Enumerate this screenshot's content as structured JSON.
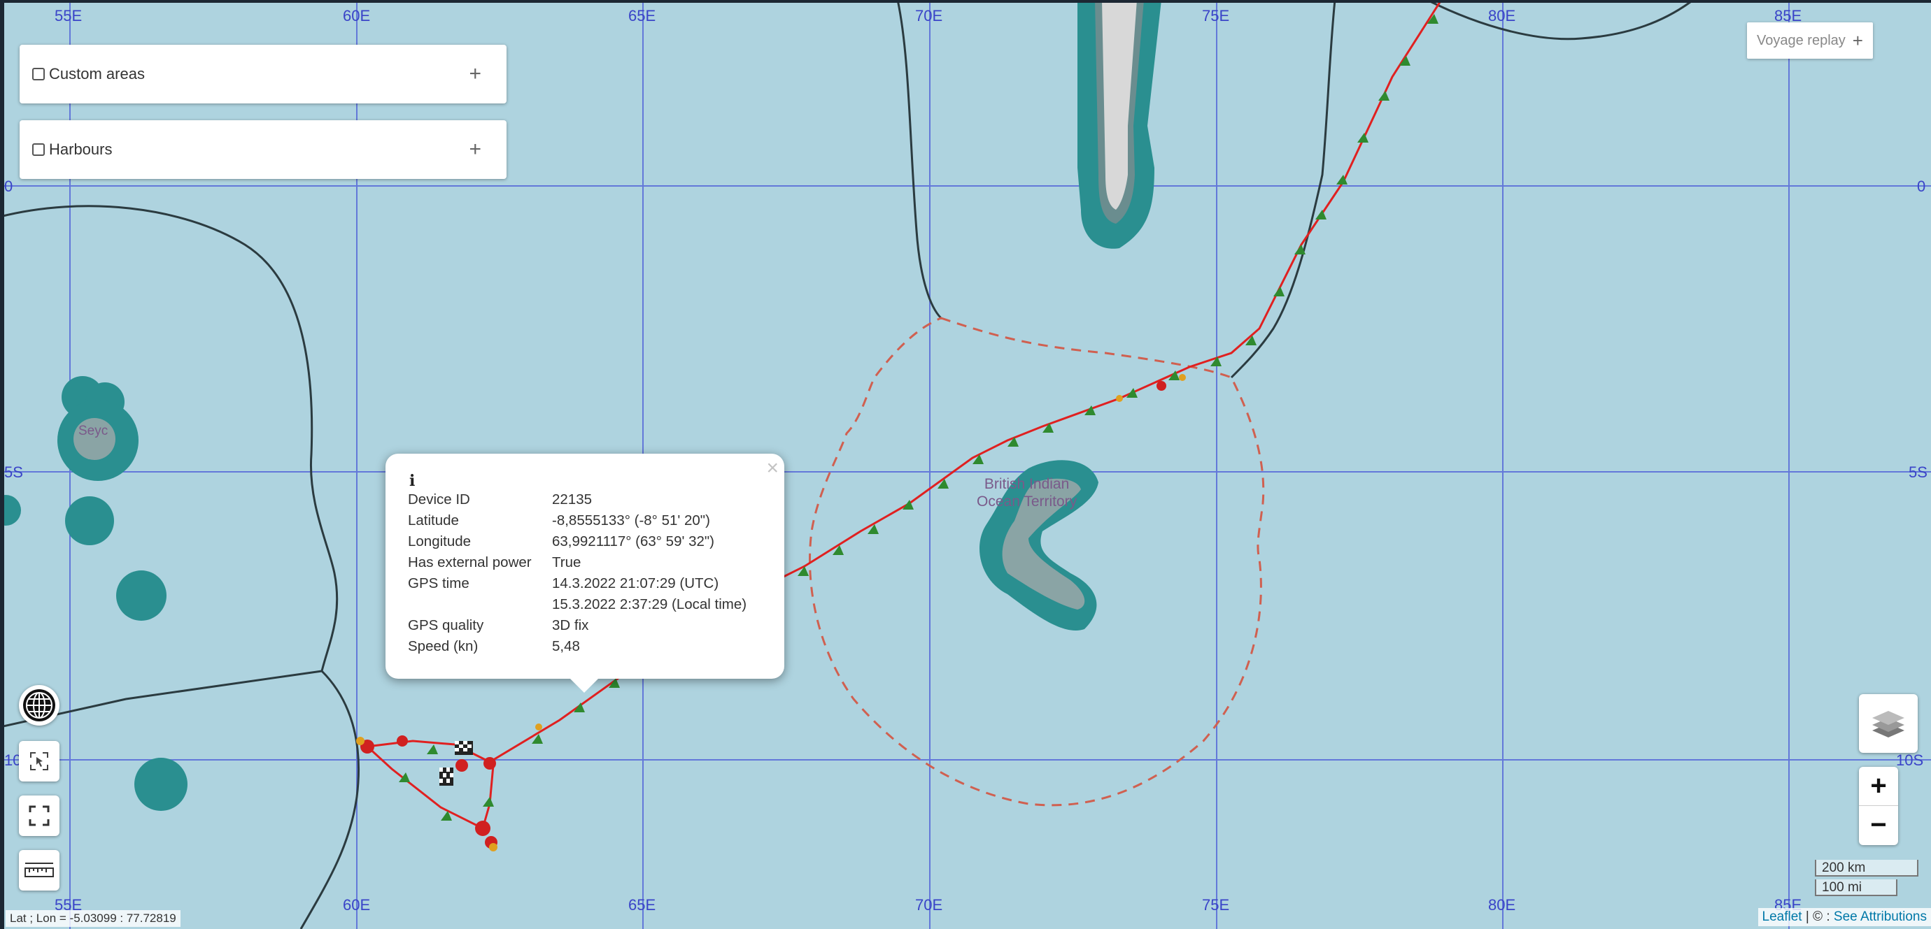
{
  "map": {
    "grid_labels_top": [
      "55E",
      "60E",
      "65E",
      "70E",
      "75E",
      "80E",
      "85E"
    ],
    "grid_labels_bottom": [
      "55E",
      "60E",
      "65E",
      "70E",
      "75E",
      "80E",
      "85E"
    ],
    "lat_labels_left": [
      "0",
      "5S",
      "10"
    ],
    "lat_labels_right": [
      "0",
      "5S",
      "10S"
    ],
    "territory_label_line1": "British Indian",
    "territory_label_line2": "Ocean Territory",
    "island_label": "Seyc",
    "colors": {
      "sea": "#aed3df",
      "grid": "#4a5ad8",
      "track": "#e02020",
      "arrow": "#2f8a2f",
      "reef": "#2a8f90",
      "eez": "#d06050"
    }
  },
  "panels": [
    {
      "label": "Custom areas",
      "checked": false,
      "expand": "+"
    },
    {
      "label": "Harbours",
      "checked": false,
      "expand": "+"
    }
  ],
  "voyage_replay": {
    "label": "Voyage replay",
    "icon": "+"
  },
  "popup": {
    "icon": "i",
    "close": "×",
    "rows": [
      {
        "key": "Device ID",
        "value": "22135"
      },
      {
        "key": "Latitude",
        "value": "-8,8555133° (-8° 51' 20\")"
      },
      {
        "key": "Longitude",
        "value": "63,9921117° (63° 59' 32\")"
      },
      {
        "key": "Has external power",
        "value": "True"
      },
      {
        "key": "GPS time",
        "value": "14.3.2022 21:07:29 (UTC)"
      },
      {
        "key": "",
        "value": "15.3.2022 2:37:29 (Local time)"
      },
      {
        "key": "GPS quality",
        "value": "3D fix"
      },
      {
        "key": "Speed (kn)",
        "value": "5,48"
      }
    ]
  },
  "controls": {
    "globe": "globe-icon",
    "locate": "locate-icon",
    "fullscreen": "fullscreen-icon",
    "measure": "ruler-icon",
    "layers": "layers-icon",
    "zoom_in": "+",
    "zoom_out": "−"
  },
  "scale": {
    "km": "200 km",
    "mi": "100 mi"
  },
  "status": {
    "coordinates": "Lat ; Lon = -5.03099 : 77.72819"
  },
  "attribution": {
    "leaflet": "Leaflet",
    "sep": " | © : ",
    "link": "See Attributions"
  }
}
